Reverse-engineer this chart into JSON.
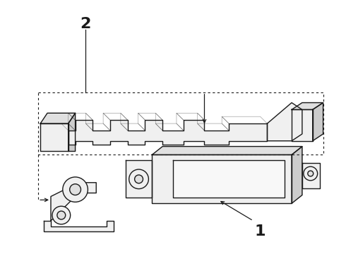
{
  "background_color": "#ffffff",
  "line_color": "#1a1a1a",
  "fill_light": "#f0f0f0",
  "fill_mid": "#e0e0e0",
  "fill_dark": "#cccccc",
  "label_1": "1",
  "label_2": "2",
  "figsize": [
    4.9,
    3.6
  ],
  "dpi": 100
}
